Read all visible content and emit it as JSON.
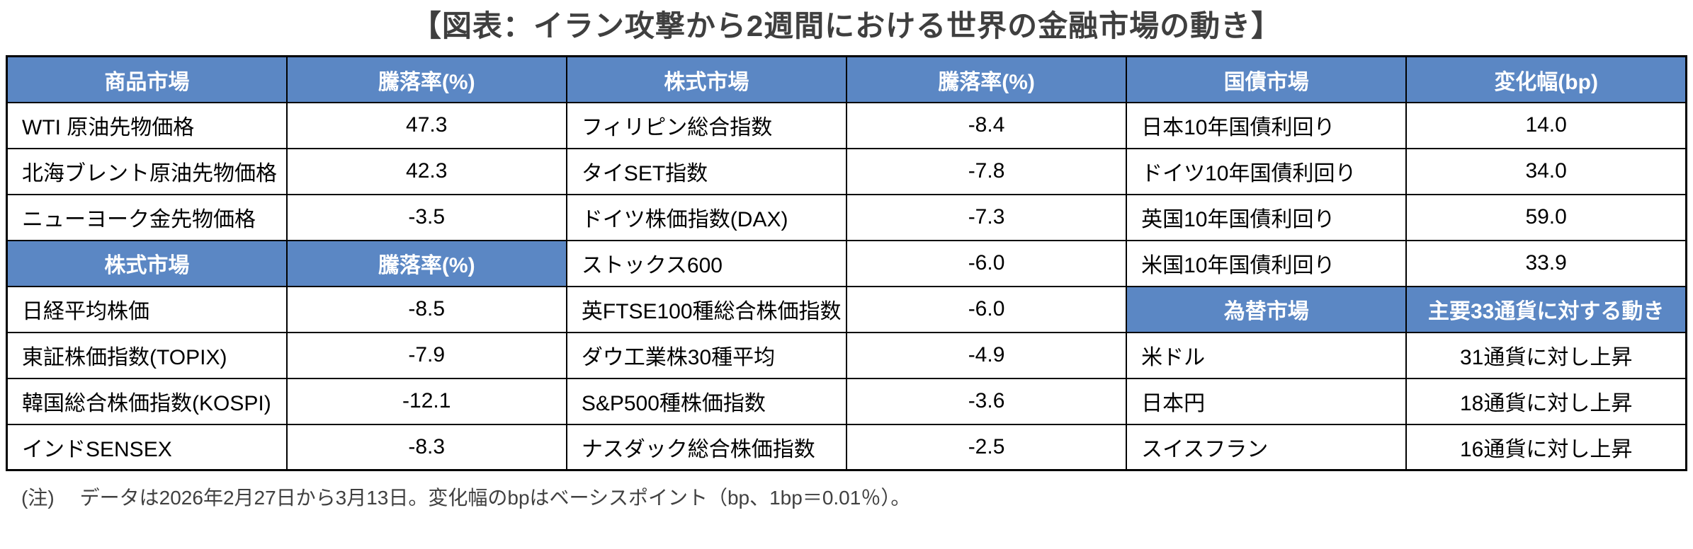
{
  "title": "【図表：イラン攻撃から2週間における世界の金融市場の動き】",
  "note": {
    "label": "(注)",
    "text": "データは2026年2月27日から3月13日。変化幅のbpはベーシスポイント（bp、1bp＝0.01％）。"
  },
  "colors": {
    "header_bg": "#5b87c4",
    "header_text": "#ffffff",
    "border": "#000000",
    "title_text": "#3f3f3f",
    "note_text": "#404040",
    "body_text": "#000000",
    "page_bg": "#ffffff"
  },
  "table": {
    "rows": [
      {
        "cells": [
          {
            "text": "商品市場",
            "header": true
          },
          {
            "text": "騰落率(%)",
            "header": true
          },
          {
            "text": "株式市場",
            "header": true
          },
          {
            "text": "騰落率(%)",
            "header": true
          },
          {
            "text": "国債市場",
            "header": true
          },
          {
            "text": "変化幅(bp)",
            "header": true
          }
        ]
      },
      {
        "cells": [
          {
            "text": "WTI 原油先物価格",
            "align": "left"
          },
          {
            "text": "47.3",
            "align": "center"
          },
          {
            "text": "フィリピン総合指数",
            "align": "left"
          },
          {
            "text": "-8.4",
            "align": "center"
          },
          {
            "text": "日本10年国債利回り",
            "align": "left"
          },
          {
            "text": "14.0",
            "align": "center"
          }
        ]
      },
      {
        "cells": [
          {
            "text": "北海ブレント原油先物価格",
            "align": "left"
          },
          {
            "text": "42.3",
            "align": "center"
          },
          {
            "text": "タイSET指数",
            "align": "left"
          },
          {
            "text": "-7.8",
            "align": "center"
          },
          {
            "text": "ドイツ10年国債利回り",
            "align": "left"
          },
          {
            "text": "34.0",
            "align": "center"
          }
        ]
      },
      {
        "cells": [
          {
            "text": "ニューヨーク金先物価格",
            "align": "left"
          },
          {
            "text": "-3.5",
            "align": "center"
          },
          {
            "text": "ドイツ株価指数(DAX)",
            "align": "left"
          },
          {
            "text": "-7.3",
            "align": "center"
          },
          {
            "text": "英国10年国債利回り",
            "align": "left"
          },
          {
            "text": "59.0",
            "align": "center"
          }
        ]
      },
      {
        "cells": [
          {
            "text": "株式市場",
            "header": true
          },
          {
            "text": "騰落率(%)",
            "header": true
          },
          {
            "text": "ストックス600",
            "align": "left"
          },
          {
            "text": "-6.0",
            "align": "center"
          },
          {
            "text": "米国10年国債利回り",
            "align": "left"
          },
          {
            "text": "33.9",
            "align": "center"
          }
        ]
      },
      {
        "cells": [
          {
            "text": "日経平均株価",
            "align": "left"
          },
          {
            "text": "-8.5",
            "align": "center"
          },
          {
            "text": "英FTSE100種総合株価指数",
            "align": "left"
          },
          {
            "text": "-6.0",
            "align": "center"
          },
          {
            "text": "為替市場",
            "header": true
          },
          {
            "text": "主要33通貨に対する動き",
            "header": true
          }
        ]
      },
      {
        "cells": [
          {
            "text": "東証株価指数(TOPIX)",
            "align": "left"
          },
          {
            "text": "-7.9",
            "align": "center"
          },
          {
            "text": "ダウ工業株30種平均",
            "align": "left"
          },
          {
            "text": "-4.9",
            "align": "center"
          },
          {
            "text": "米ドル",
            "align": "left"
          },
          {
            "text": "31通貨に対し上昇",
            "align": "center"
          }
        ]
      },
      {
        "cells": [
          {
            "text": "韓国総合株価指数(KOSPI)",
            "align": "left"
          },
          {
            "text": "-12.1",
            "align": "center"
          },
          {
            "text": "S&P500種株価指数",
            "align": "left"
          },
          {
            "text": "-3.6",
            "align": "center"
          },
          {
            "text": "日本円",
            "align": "left"
          },
          {
            "text": "18通貨に対し上昇",
            "align": "center"
          }
        ]
      },
      {
        "cells": [
          {
            "text": "インドSENSEX",
            "align": "left"
          },
          {
            "text": "-8.3",
            "align": "center"
          },
          {
            "text": "ナスダック総合株価指数",
            "align": "left"
          },
          {
            "text": "-2.5",
            "align": "center"
          },
          {
            "text": "スイスフラン",
            "align": "left"
          },
          {
            "text": "16通貨に対し上昇",
            "align": "center"
          }
        ]
      }
    ]
  },
  "chart_data": {
    "type": "table",
    "title": "【図表：イラン攻撃から2週間における世界の金融市場の動き】",
    "note": "データは2026年2月27日から3月13日。変化幅のbpはベーシスポイント（bp、1bp＝0.01％）。",
    "sections": [
      {
        "market": "商品市場",
        "metric": "騰落率(%)",
        "rows": [
          {
            "name": "WTI 原油先物価格",
            "value": 47.3
          },
          {
            "name": "北海ブレント原油先物価格",
            "value": 42.3
          },
          {
            "name": "ニューヨーク金先物価格",
            "value": -3.5
          }
        ]
      },
      {
        "market": "株式市場",
        "metric": "騰落率(%)",
        "rows": [
          {
            "name": "日経平均株価",
            "value": -8.5
          },
          {
            "name": "東証株価指数(TOPIX)",
            "value": -7.9
          },
          {
            "name": "韓国総合株価指数(KOSPI)",
            "value": -12.1
          },
          {
            "name": "インドSENSEX",
            "value": -8.3
          },
          {
            "name": "フィリピン総合指数",
            "value": -8.4
          },
          {
            "name": "タイSET指数",
            "value": -7.8
          },
          {
            "name": "ドイツ株価指数(DAX)",
            "value": -7.3
          },
          {
            "name": "ストックス600",
            "value": -6.0
          },
          {
            "name": "英FTSE100種総合株価指数",
            "value": -6.0
          },
          {
            "name": "ダウ工業株30種平均",
            "value": -4.9
          },
          {
            "name": "S&P500種株価指数",
            "value": -3.6
          },
          {
            "name": "ナスダック総合株価指数",
            "value": -2.5
          }
        ]
      },
      {
        "market": "国債市場",
        "metric": "変化幅(bp)",
        "rows": [
          {
            "name": "日本10年国債利回り",
            "value": 14.0
          },
          {
            "name": "ドイツ10年国債利回り",
            "value": 34.0
          },
          {
            "name": "英国10年国債利回り",
            "value": 59.0
          },
          {
            "name": "米国10年国債利回り",
            "value": 33.9
          }
        ]
      },
      {
        "market": "為替市場",
        "metric": "主要33通貨に対する動き",
        "rows": [
          {
            "name": "米ドル",
            "value": "31通貨に対し上昇"
          },
          {
            "name": "日本円",
            "value": "18通貨に対し上昇"
          },
          {
            "name": "スイスフラン",
            "value": "16通貨に対し上昇"
          }
        ]
      }
    ]
  }
}
